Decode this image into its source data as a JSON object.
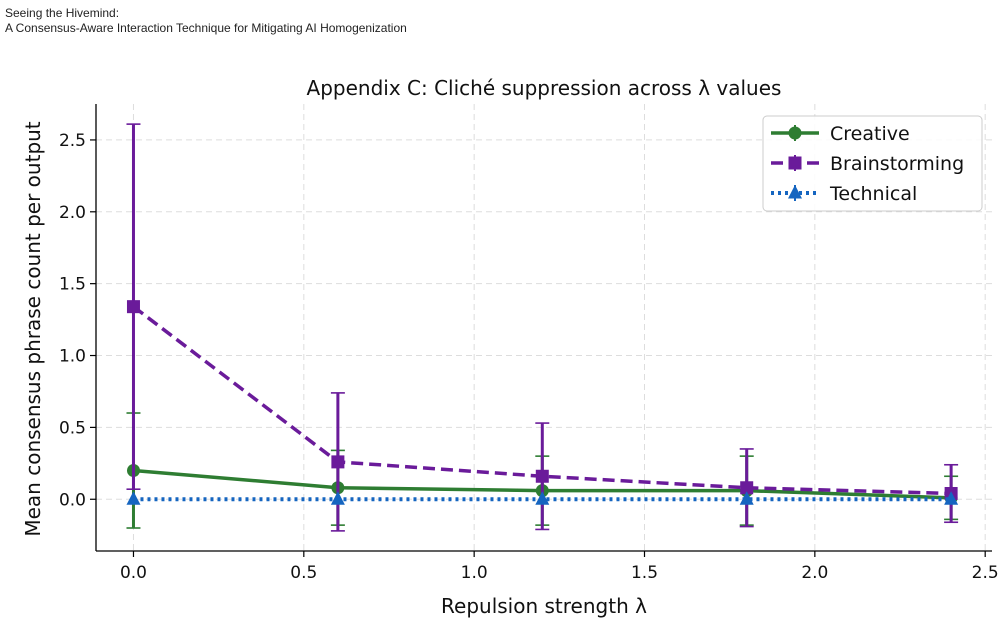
{
  "header": {
    "line1": "Seeing the Hivemind:",
    "line2": "A Consensus-Aware Interaction Technique for Mitigating AI Homogenization"
  },
  "chart_data": {
    "type": "line",
    "title": "Appendix C: Cliché suppression across λ values",
    "xlabel": "Repulsion strength λ",
    "ylabel": "Mean consensus phrase count per output",
    "xlim": [
      -0.11,
      2.52
    ],
    "ylim": [
      -0.36,
      2.75
    ],
    "x_ticks": [
      0.0,
      0.5,
      1.0,
      1.5,
      2.0,
      2.5
    ],
    "x_tick_labels": [
      "0.0",
      "0.5",
      "1.0",
      "1.5",
      "2.0",
      "2.5"
    ],
    "y_ticks": [
      0.0,
      0.5,
      1.0,
      1.5,
      2.0,
      2.5
    ],
    "y_tick_labels": [
      "0.0",
      "0.5",
      "1.0",
      "1.5",
      "2.0",
      "2.5"
    ],
    "grid": true,
    "legend_position": "top-right",
    "x": [
      0.0,
      0.6,
      1.2,
      1.8,
      2.4
    ],
    "series": [
      {
        "name": "Creative",
        "color": "#2e7d32",
        "marker": "circle",
        "line_style": "solid",
        "values": [
          0.2,
          0.08,
          0.06,
          0.06,
          0.01
        ],
        "err": [
          0.4,
          0.26,
          0.24,
          0.24,
          0.15
        ]
      },
      {
        "name": "Brainstorming",
        "color": "#6a1b9a",
        "marker": "square",
        "line_style": "dashed",
        "values": [
          1.34,
          0.26,
          0.16,
          0.08,
          0.04
        ],
        "err": [
          1.27,
          0.48,
          0.37,
          0.27,
          0.2
        ]
      },
      {
        "name": "Technical",
        "color": "#1565c0",
        "marker": "triangle",
        "line_style": "dotted",
        "values": [
          0.0,
          0.0,
          0.0,
          0.0,
          0.0
        ],
        "err": [
          0.0,
          0.0,
          0.0,
          0.0,
          0.0
        ]
      }
    ]
  }
}
